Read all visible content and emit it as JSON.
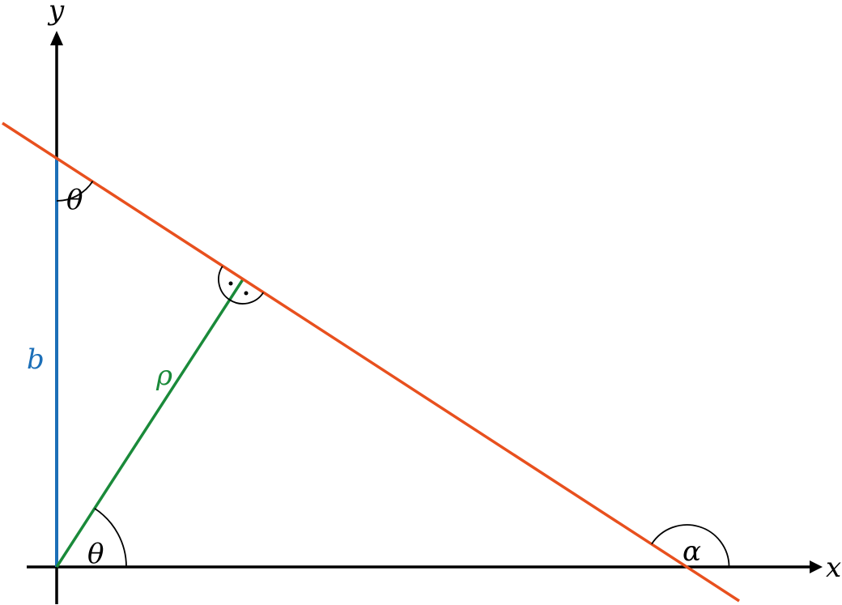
{
  "labels": {
    "x_axis": "x",
    "y_axis": "y",
    "intercept": "b",
    "distance": "ρ",
    "angle_top": "θ",
    "angle_origin": "θ",
    "angle_x": "α"
  },
  "colors": {
    "line": "#e8501e",
    "intercept": "#1c6fb8",
    "distance": "#1a8a3a",
    "axes": "#000000"
  }
}
